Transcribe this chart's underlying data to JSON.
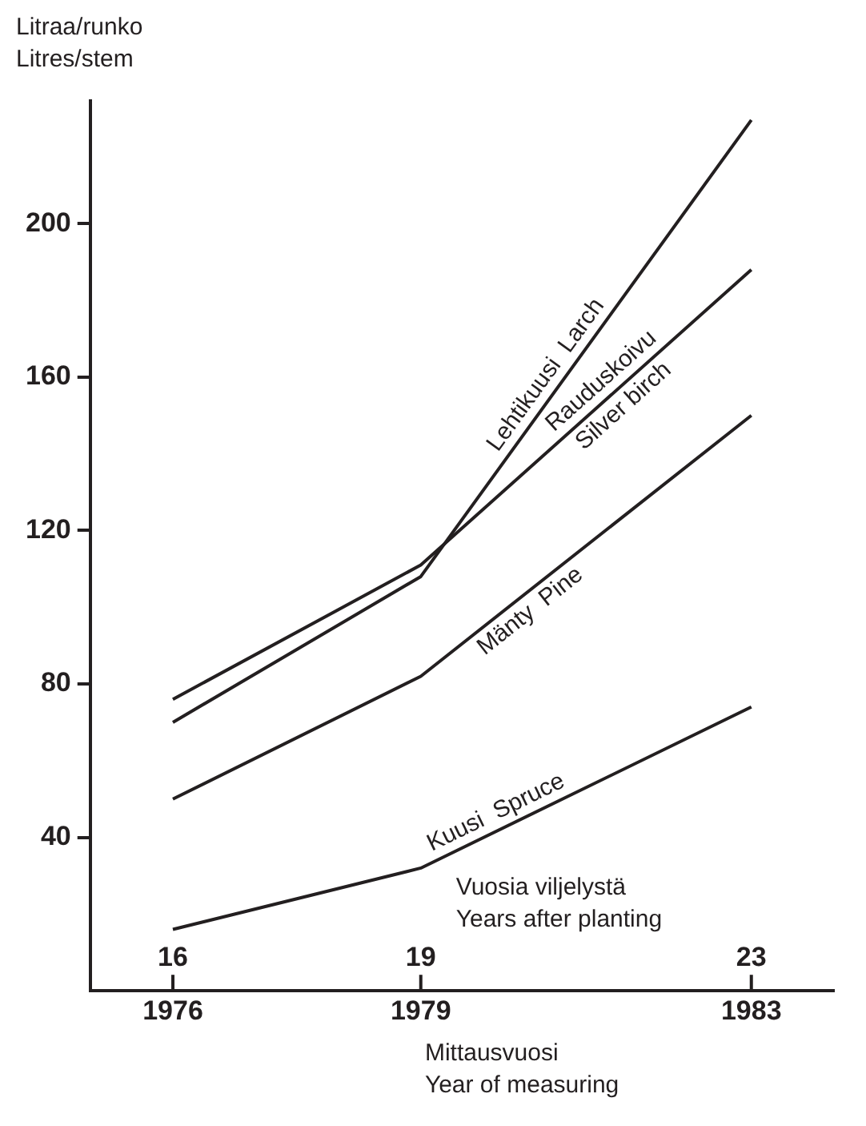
{
  "chart_data": {
    "type": "line",
    "ylabel": "Litraa/runko\nLitres/stem",
    "xlabel": "Mittausvuosi\nYear of measuring",
    "x2label": "Vuosia viljelystä\nYears after planting",
    "x": [
      1976,
      1979,
      1983
    ],
    "series": [
      {
        "name": "Lehtikuusi  Larch",
        "color": "#231f20",
        "values": [
          70,
          108,
          227
        ]
      },
      {
        "name": "Rauduskoivu\nSilver birch",
        "color": "#231f20",
        "values": [
          76,
          111,
          188
        ]
      },
      {
        "name": "Mänty  Pine",
        "color": "#231f20",
        "values": [
          50,
          82,
          150
        ]
      },
      {
        "name": "Kuusi  Spruce",
        "color": "#231f20",
        "values": [
          16,
          32,
          74
        ]
      }
    ],
    "xlim": [
      1975,
      1984
    ],
    "xticks": [
      1976,
      1979,
      1983
    ],
    "x2lim": [
      15,
      24
    ],
    "x2ticks": [
      16,
      19,
      23
    ],
    "ylim": [
      0,
      232
    ],
    "yticks": [
      40,
      80,
      120,
      160,
      200
    ],
    "grid": false,
    "legend": false,
    "marker": "none",
    "line_style": "solid"
  }
}
